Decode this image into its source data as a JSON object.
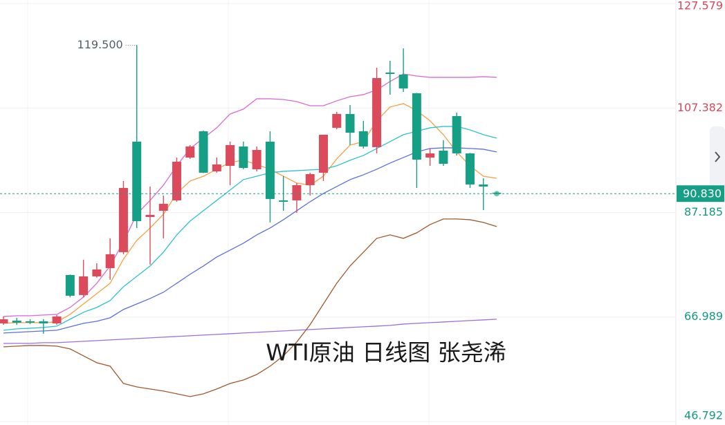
{
  "chart_data": {
    "type": "candlestick",
    "title": "WTI原油 日线图 张尧浠",
    "open": [
      65.76,
      66.3,
      66.16,
      66.16,
      65.76,
      75.11,
      71.24,
      74.84,
      76.44,
      79.52,
      100.88,
      86.32,
      87.52,
      89.53,
      97.8,
      102.88,
      95.13,
      96.2,
      99.94,
      95.54,
      100.88,
      89.53,
      89.53,
      92.47,
      94.87,
      103.55,
      106.22,
      102.88,
      99.81,
      114.23,
      113.83,
      110.22,
      97.8,
      99.14,
      105.82,
      98.61,
      92.6,
      91.0
    ],
    "high": [
      67.1,
      66.83,
      66.56,
      66.56,
      67.37,
      75.2,
      78.05,
      77.38,
      82.19,
      93.27,
      119.5,
      92.2,
      90.46,
      97.8,
      100.21,
      103.0,
      97.8,
      100.88,
      100.88,
      99.94,
      102.88,
      94.2,
      92.87,
      94.87,
      102.21,
      106.62,
      107.95,
      104.88,
      115.16,
      116.5,
      118.9,
      110.3,
      99.54,
      101.15,
      106.48,
      98.7,
      93.8,
      91.1
    ],
    "low": [
      65.49,
      65.49,
      65.63,
      63.76,
      65.5,
      70.8,
      70.8,
      74.6,
      74.18,
      79.12,
      84.19,
      77.11,
      82.19,
      89.26,
      97.54,
      94.8,
      94.87,
      92.47,
      95.54,
      95.13,
      85.26,
      87.52,
      87.12,
      90.46,
      93.27,
      103.28,
      100.21,
      99.54,
      98.61,
      109.96,
      110.49,
      91.93,
      96.2,
      96.2,
      98.21,
      91.93,
      87.66,
      90.7
    ],
    "close": [
      66.56,
      65.9,
      65.9,
      65.76,
      67.1,
      71.1,
      74.84,
      76.18,
      79.12,
      91.93,
      85.52,
      86.72,
      88.86,
      97.0,
      99.94,
      94.87,
      96.47,
      100.21,
      95.8,
      99.27,
      89.8,
      89.26,
      92.47,
      94.6,
      102.21,
      106.22,
      102.61,
      99.94,
      113.16,
      113.96,
      111.16,
      97.4,
      98.61,
      96.6,
      98.61,
      92.6,
      92.2,
      90.83
    ],
    "up_color": "#dc4b5b",
    "down_color": "#159f85",
    "series": [
      {
        "color": "#d96ad3",
        "values": [
          67.1,
          67.24,
          67.24,
          67.37,
          67.5,
          68.84,
          70.84,
          73.51,
          76.85,
          81.52,
          86.86,
          89.53,
          92.47,
          96.21,
          99.55,
          101.55,
          103.55,
          106.22,
          107.16,
          109.16,
          109.16,
          109.02,
          108.62,
          107.82,
          107.82,
          108.76,
          109.56,
          109.96,
          110.89,
          112.5,
          113.96,
          113.56,
          113.3,
          113.3,
          113.3,
          113.3,
          113.43,
          113.3
        ]
      },
      {
        "color": "#f5a042",
        "values": [
          65.77,
          65.9,
          65.9,
          65.9,
          66.03,
          67.5,
          69.51,
          71.51,
          73.51,
          78.18,
          81.79,
          84.19,
          86.86,
          90.87,
          93.27,
          94.2,
          95.54,
          96.88,
          97.28,
          96.47,
          95.54,
          94.2,
          92.87,
          92.47,
          94.2,
          97.54,
          100.21,
          100.88,
          104.89,
          107.56,
          108.22,
          106.89,
          104.89,
          102.22,
          98.88,
          96.21,
          94.2,
          93.8
        ]
      },
      {
        "color": "#2bc0d0",
        "values": [
          64.43,
          64.7,
          64.83,
          64.97,
          65.23,
          66.57,
          67.9,
          68.84,
          70.17,
          72.84,
          74.85,
          76.85,
          79.52,
          82.86,
          85.53,
          87.53,
          89.53,
          91.53,
          93.54,
          94.2,
          94.87,
          95.14,
          95.27,
          95.41,
          95.54,
          96.21,
          97.28,
          98.21,
          99.55,
          100.88,
          102.22,
          102.88,
          103.55,
          103.82,
          103.82,
          103.15,
          102.22,
          101.55
        ]
      },
      {
        "color": "#5a6fe0",
        "values": [
          63.9,
          64.03,
          64.17,
          64.3,
          64.43,
          65.1,
          65.77,
          66.17,
          66.84,
          68.44,
          69.51,
          70.57,
          71.78,
          73.51,
          75.25,
          76.85,
          78.58,
          79.92,
          81.25,
          82.86,
          84.19,
          85.79,
          87.53,
          89.27,
          90.87,
          92.2,
          93.54,
          94.47,
          95.54,
          96.74,
          97.81,
          98.88,
          99.55,
          99.68,
          99.68,
          99.55,
          99.41,
          98.88
        ]
      },
      {
        "color": "#9a6ee0",
        "values": [
          61.9,
          61.9,
          61.9,
          62.03,
          62.03,
          62.17,
          62.3,
          62.43,
          62.57,
          62.7,
          62.83,
          62.97,
          63.1,
          63.23,
          63.37,
          63.5,
          63.63,
          63.76,
          63.9,
          64.03,
          64.17,
          64.3,
          64.43,
          64.57,
          64.7,
          64.83,
          64.97,
          65.1,
          65.23,
          65.37,
          65.63,
          65.77,
          65.9,
          66.03,
          66.17,
          66.3,
          66.43,
          66.57
        ]
      },
      {
        "color": "#a0592c",
        "values": [
          61.23,
          61.36,
          61.49,
          61.49,
          61.36,
          60.83,
          59.49,
          58.16,
          57.49,
          54.15,
          53.48,
          53.08,
          52.68,
          52.15,
          51.62,
          52.15,
          53.08,
          54.15,
          54.82,
          55.89,
          57.49,
          59.49,
          62.16,
          65.5,
          69.51,
          73.51,
          76.85,
          79.52,
          82.19,
          82.86,
          82.19,
          83.26,
          84.86,
          85.93,
          85.93,
          85.79,
          85.26,
          84.46
        ]
      }
    ],
    "ylim": [
      46.792,
      127.579
    ],
    "yticks": [
      127.579,
      107.382,
      87.185,
      66.989,
      46.792
    ],
    "grid": true,
    "last_price": {
      "value": 90.83,
      "label": "90.830"
    },
    "high_annotation": {
      "value": 119.5,
      "label": "119.500"
    }
  }
}
